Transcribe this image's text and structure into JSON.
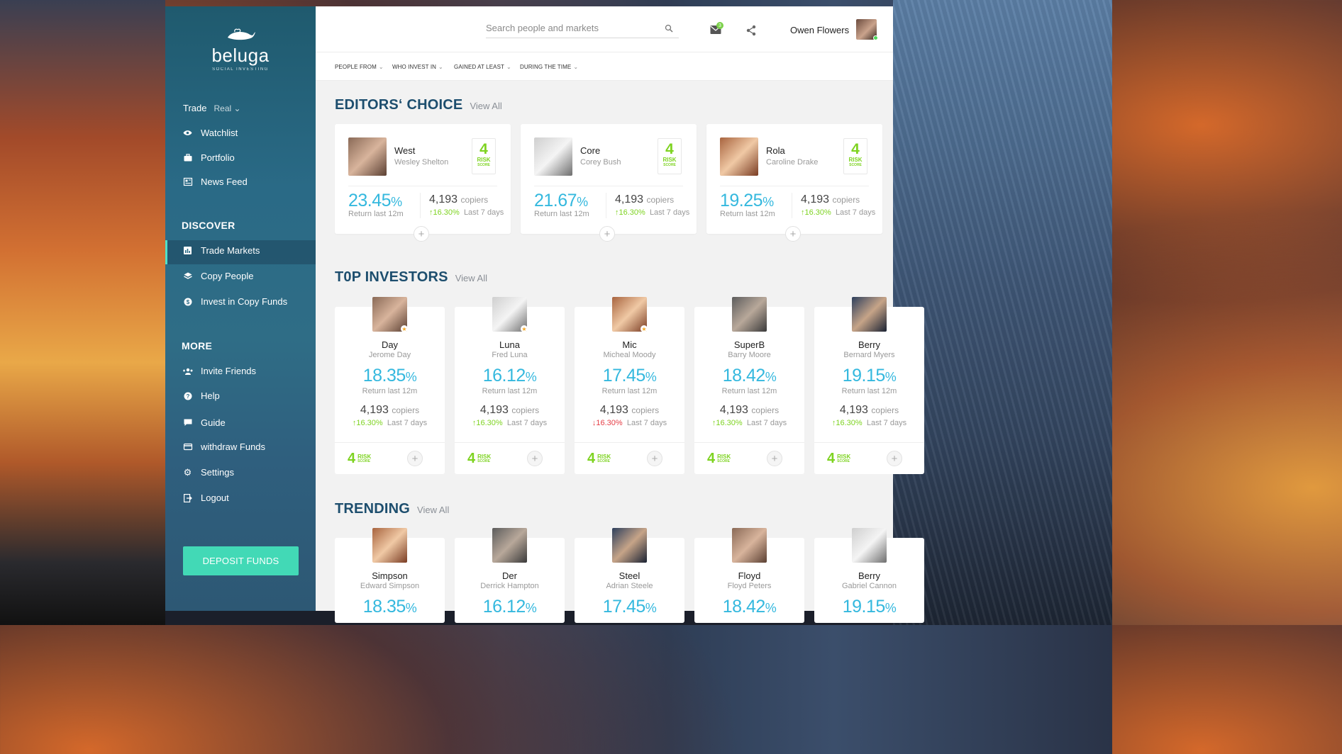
{
  "brand": {
    "name": "beluga",
    "tagline": "SOCIAL INVESTING"
  },
  "sidebar": {
    "trade_label": "Trade",
    "trade_mode": "Real",
    "items_main": [
      {
        "label": "Watchlist",
        "icon": "eye-icon"
      },
      {
        "label": "Portfolio",
        "icon": "briefcase-icon"
      },
      {
        "label": "News Feed",
        "icon": "newspaper-icon"
      }
    ],
    "discover_title": "DISCOVER",
    "items_discover": [
      {
        "label": "Trade Markets",
        "icon": "bar-chart-icon",
        "active": true
      },
      {
        "label": "Copy People",
        "icon": "layers-icon"
      },
      {
        "label": "Invest in Copy Funds",
        "icon": "dollar-coin-icon"
      }
    ],
    "more_title": "MORE",
    "items_more": [
      {
        "label": "Invite Friends",
        "icon": "add-users-icon"
      },
      {
        "label": "Help",
        "icon": "question-icon"
      },
      {
        "label": "Guide",
        "icon": "chat-icon"
      },
      {
        "label": "withdraw Funds",
        "icon": "credit-card-icon"
      },
      {
        "label": "Settings",
        "icon": "gear-icon"
      },
      {
        "label": "Logout",
        "icon": "logout-icon"
      }
    ],
    "deposit_label": "DEPOSIT FUNDS"
  },
  "header": {
    "search_placeholder": "Search people and markets",
    "mail_badge": "3",
    "user_name": "Owen Flowers"
  },
  "filters": [
    {
      "label": "PEOPLE FROM"
    },
    {
      "label": "WHO INVEST IN"
    },
    {
      "label": "GAINED AT LEAST"
    },
    {
      "label": "DURING THE TIME"
    }
  ],
  "sections": {
    "editors_title": "EDITORS‘ CHOICE",
    "top_title": "T0P INVESTORS",
    "trending_title": "TRENDING",
    "view_all": "View All"
  },
  "common": {
    "return_label": "Return last 12m",
    "copiers_word": "copiers",
    "last7": "Last 7 days",
    "risk_word": "RISK",
    "score_word": "SCORE",
    "pct": "%"
  },
  "editors": [
    {
      "nick": "West",
      "name": "Wesley Shelton",
      "risk": "4",
      "return": "23.45",
      "copiers": "4,193",
      "change": "16.30%",
      "dir": "up"
    },
    {
      "nick": "Core",
      "name": "Corey Bush",
      "risk": "4",
      "return": "21.67",
      "copiers": "4,193",
      "change": "16.30%",
      "dir": "up"
    },
    {
      "nick": "Rola",
      "name": "Caroline Drake",
      "risk": "4",
      "return": "19.25",
      "copiers": "4,193",
      "change": "16.30%",
      "dir": "up"
    }
  ],
  "top_investors": [
    {
      "nick": "Day",
      "name": "Jerome Day",
      "return": "18.35",
      "copiers": "4,193",
      "change": "16.30%",
      "dir": "up",
      "risk": "4",
      "star": true
    },
    {
      "nick": "Luna",
      "name": "Fred Luna",
      "return": "16.12",
      "copiers": "4,193",
      "change": "16.30%",
      "dir": "up",
      "risk": "4",
      "star": true
    },
    {
      "nick": "Mic",
      "name": "Micheal Moody",
      "return": "17.45",
      "copiers": "4,193",
      "change": "16.30%",
      "dir": "down",
      "risk": "4",
      "star": true
    },
    {
      "nick": "SuperB",
      "name": "Barry Moore",
      "return": "18.42",
      "copiers": "4,193",
      "change": "16.30%",
      "dir": "up",
      "risk": "4",
      "star": false
    },
    {
      "nick": "Berry",
      "name": "Bernard Myers",
      "return": "19.15",
      "copiers": "4,193",
      "change": "16.30%",
      "dir": "up",
      "risk": "4",
      "star": false
    }
  ],
  "trending": [
    {
      "nick": "Simpson",
      "name": "Edward Simpson",
      "return": "18.35"
    },
    {
      "nick": "Der",
      "name": "Derrick Hampton",
      "return": "16.12"
    },
    {
      "nick": "Steel",
      "name": "Adrian Steele",
      "return": "17.45"
    },
    {
      "nick": "Floyd",
      "name": "Floyd Peters",
      "return": "18.42"
    },
    {
      "nick": "Berry",
      "name": "Gabriel Cannon",
      "return": "19.15"
    }
  ],
  "colors": {
    "accent": "#34b8de",
    "green": "#7ed321",
    "red": "#e53d45",
    "deposit": "#42d9b6",
    "heading": "#1d4e6e"
  }
}
